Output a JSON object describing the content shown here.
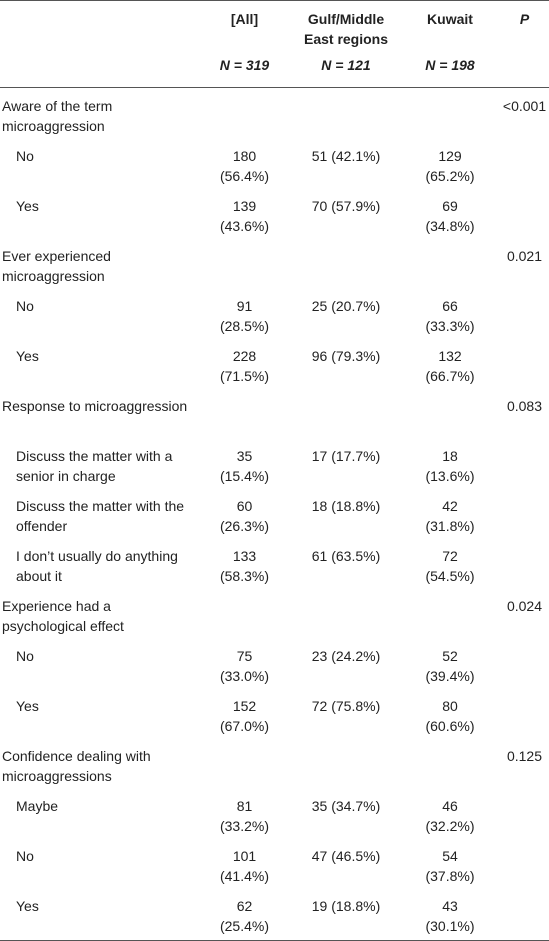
{
  "table": {
    "header": {
      "columns": [
        "[All]",
        "Gulf/Middle East regions",
        "Kuwait",
        "P"
      ],
      "n": [
        "N = 319",
        "N = 121",
        "N = 198"
      ]
    },
    "sections": [
      {
        "label": "Aware of the term microaggression",
        "p": "<0.001",
        "rows": [
          {
            "label": "No",
            "cells": [
              "180 (56.4%)",
              "51 (42.1%)",
              "129 (65.2%)"
            ]
          },
          {
            "label": "Yes",
            "cells": [
              "139 (43.6%)",
              "70 (57.9%)",
              "69 (34.8%)"
            ]
          }
        ]
      },
      {
        "label": "Ever experienced microaggression",
        "p": "0.021",
        "rows": [
          {
            "label": "No",
            "cells": [
              "91 (28.5%)",
              "25 (20.7%)",
              "66 (33.3%)"
            ]
          },
          {
            "label": "Yes",
            "cells": [
              "228 (71.5%)",
              "96 (79.3%)",
              "132 (66.7%)"
            ]
          }
        ]
      },
      {
        "label": "Response to microaggression",
        "p": "0.083",
        "rows": [
          {
            "label": "Discuss the matter with a senior in charge",
            "cells": [
              "35 (15.4%)",
              "17 (17.7%)",
              "18 (13.6%)"
            ]
          },
          {
            "label": "Discuss the matter with the offender",
            "cells": [
              "60 (26.3%)",
              "18 (18.8%)",
              "42 (31.8%)"
            ]
          },
          {
            "label": "I don’t usually do anything about it",
            "cells": [
              "133 (58.3%)",
              "61 (63.5%)",
              "72 (54.5%)"
            ]
          }
        ]
      },
      {
        "label": "Experience had a psychological effect",
        "p": "0.024",
        "rows": [
          {
            "label": "No",
            "cells": [
              "75 (33.0%)",
              "23 (24.2%)",
              "52 (39.4%)"
            ]
          },
          {
            "label": "Yes",
            "cells": [
              "152 (67.0%)",
              "72 (75.8%)",
              "80 (60.6%)"
            ]
          }
        ]
      },
      {
        "label": "Confidence dealing with microaggressions",
        "p": "0.125",
        "rows": [
          {
            "label": "Maybe",
            "cells": [
              "81 (33.2%)",
              "35 (34.7%)",
              "46 (32.2%)"
            ]
          },
          {
            "label": "No",
            "cells": [
              "101 (41.4%)",
              "47 (46.5%)",
              "54 (37.8%)"
            ]
          },
          {
            "label": "Yes",
            "cells": [
              "62 (25.4%)",
              "19 (18.8%)",
              "43 (30.1%)"
            ]
          }
        ]
      }
    ]
  }
}
